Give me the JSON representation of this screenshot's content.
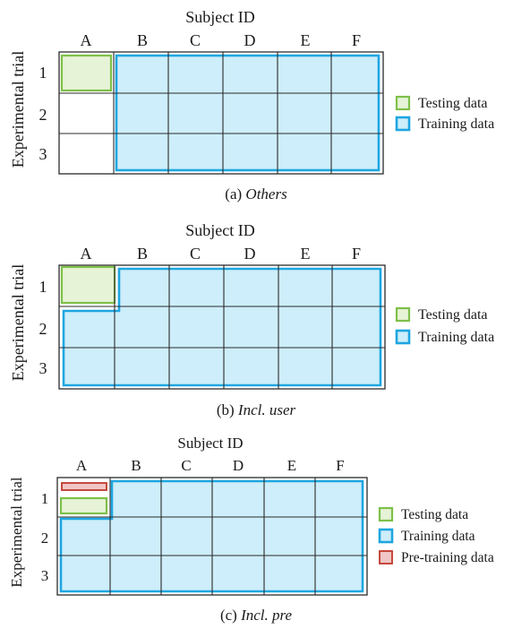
{
  "colors": {
    "testing": "#7ec04a",
    "training": "#1ea6e0",
    "pretraining": "#c0392b"
  },
  "panels": [
    {
      "caption_prefix": "(a) ",
      "caption_italic": "Others",
      "axis_top": "Subject ID",
      "axis_left": "Experimental trial",
      "columns": [
        "A",
        "B",
        "C",
        "D",
        "E",
        "F"
      ],
      "rows": [
        "1",
        "2",
        "3"
      ],
      "legend": [
        "Testing data",
        "Training data"
      ]
    },
    {
      "caption_prefix": "(b) ",
      "caption_italic": "Incl. user",
      "axis_top": "Subject ID",
      "axis_left": "Experimental trial",
      "columns": [
        "A",
        "B",
        "C",
        "D",
        "E",
        "F"
      ],
      "rows": [
        "1",
        "2",
        "3"
      ],
      "legend": [
        "Testing data",
        "Training data"
      ]
    },
    {
      "caption_prefix": "(c) ",
      "caption_italic": "Incl. pre",
      "axis_top": "Subject ID",
      "axis_left": "Experimental trial",
      "columns": [
        "A",
        "B",
        "C",
        "D",
        "E",
        "F"
      ],
      "rows": [
        "1",
        "2",
        "3"
      ],
      "legend": [
        "Testing data",
        "Training data",
        "Pre-training data"
      ]
    }
  ]
}
